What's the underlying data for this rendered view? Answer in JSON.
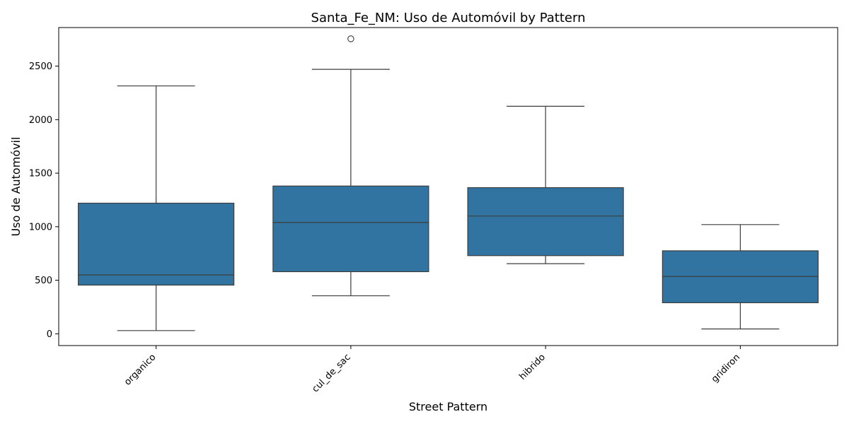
{
  "chart_data": {
    "type": "box",
    "title": "Santa_Fe_NM: Uso de Automóvil by Pattern",
    "xlabel": "Street Pattern",
    "ylabel": "Uso de Automóvil",
    "ylim": [
      -110,
      2860
    ],
    "yticks": [
      0,
      500,
      1000,
      1500,
      2000,
      2500
    ],
    "grid": false,
    "colors": {
      "box_fill": "#3274a1",
      "line": "#3d3d3d",
      "frame": "#000000"
    },
    "categories": [
      "organico",
      "cul_de_sac",
      "hibrido",
      "gridiron"
    ],
    "boxes": [
      {
        "category": "organico",
        "whisker_low": 30,
        "q1": 455,
        "median": 550,
        "q3": 1220,
        "whisker_high": 2315,
        "outliers": []
      },
      {
        "category": "cul_de_sac",
        "whisker_low": 355,
        "q1": 580,
        "median": 1040,
        "q3": 1380,
        "whisker_high": 2470,
        "outliers": [
          2755
        ]
      },
      {
        "category": "hibrido",
        "whisker_low": 655,
        "q1": 730,
        "median": 1100,
        "q3": 1365,
        "whisker_high": 2125,
        "outliers": []
      },
      {
        "category": "gridiron",
        "whisker_low": 45,
        "q1": 290,
        "median": 535,
        "q3": 775,
        "whisker_high": 1020,
        "outliers": []
      }
    ]
  }
}
